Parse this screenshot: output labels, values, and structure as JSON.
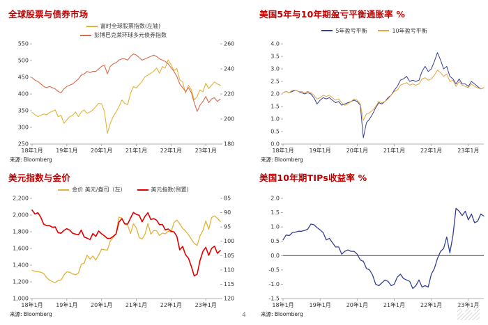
{
  "page": {
    "number": "4"
  },
  "chart_data": [
    {
      "id": "global-equity-bond",
      "type": "line",
      "title": "全球股票与债券市场",
      "source": "来源: Bloomberg",
      "legend_stacked": true,
      "x_ticks": [
        [
          0,
          "18年1月"
        ],
        [
          12,
          "19年1月"
        ],
        [
          24,
          "20年1月"
        ],
        [
          36,
          "21年1月"
        ],
        [
          48,
          "22年1月"
        ],
        [
          60,
          "23年1月"
        ]
      ],
      "left_axis": {
        "range": [
          250,
          550
        ],
        "ticks": [
          [
            550,
            "550"
          ],
          [
            500,
            "500"
          ],
          [
            450,
            "450"
          ],
          [
            400,
            "400"
          ],
          [
            350,
            "350"
          ],
          [
            300,
            "300"
          ],
          [
            250,
            "250"
          ]
        ]
      },
      "right_axis": {
        "range": [
          180,
          260
        ],
        "ticks": [
          [
            260,
            "260"
          ],
          [
            240,
            "240"
          ],
          [
            220,
            "220"
          ],
          [
            200,
            "200"
          ],
          [
            180,
            "180"
          ]
        ]
      },
      "series": [
        {
          "name": "富时全球股票指数(左轴)",
          "color": "#E3B23A",
          "axis": "left",
          "width": 1.1,
          "values": [
            345,
            338,
            332,
            336,
            340,
            338,
            344,
            348,
            352,
            332,
            336,
            312,
            322,
            332,
            336,
            346,
            332,
            346,
            352,
            342,
            346,
            352,
            362,
            372,
            370,
            348,
            282,
            312,
            332,
            346,
            362,
            382,
            372,
            368,
            402,
            422,
            418,
            428,
            438,
            452,
            456,
            462,
            468,
            478,
            462,
            482,
            478,
            502,
            488,
            470,
            476,
            442,
            436,
            402,
            426,
            412,
            382,
            392,
            412,
            406,
            432,
            416,
            426,
            436,
            430,
            426
          ]
        },
        {
          "name": "彭博巴克莱环球多元债券指数",
          "color": "#D96A4A",
          "axis": "right",
          "width": 1.1,
          "values": [
            233,
            231,
            230,
            228,
            226,
            225,
            226,
            225,
            224,
            222,
            221,
            224,
            226,
            227,
            228,
            230,
            232,
            235,
            236,
            238,
            237,
            238,
            238,
            240,
            242,
            243,
            236,
            242,
            244,
            245,
            247,
            248,
            248,
            247,
            250,
            252,
            251,
            249,
            247,
            248,
            249,
            250,
            251,
            250,
            248,
            247,
            246,
            244,
            241,
            238,
            234,
            228,
            225,
            222,
            225,
            221,
            213,
            206,
            211,
            214,
            218,
            213,
            216,
            217,
            214,
            216
          ]
        }
      ]
    },
    {
      "id": "us-breakeven-inflation",
      "type": "line",
      "title": "美国5年与10年期盈亏平衡通胀率 %",
      "source": "来源: Bloomberg",
      "legend_tall": true,
      "x_ticks": [
        [
          0,
          "18年1月"
        ],
        [
          12,
          "19年1月"
        ],
        [
          24,
          "20年1月"
        ],
        [
          36,
          "21年1月"
        ],
        [
          48,
          "22年1月"
        ],
        [
          60,
          "23年1月"
        ]
      ],
      "left_axis": {
        "range": [
          0,
          4
        ],
        "ticks": [
          [
            4,
            "4.0"
          ],
          [
            3.5,
            "3.5"
          ],
          [
            3,
            "3.0"
          ],
          [
            2.5,
            "2.5"
          ],
          [
            2,
            "2.0"
          ],
          [
            1.5,
            "1.5"
          ],
          [
            1,
            "1.0"
          ],
          [
            0.5,
            "0.5"
          ],
          [
            0,
            "0.0"
          ]
        ]
      },
      "series": [
        {
          "name": "5年盈亏平衡",
          "color": "#333F94",
          "axis": "left",
          "width": 1.0,
          "values": [
            2.05,
            2.1,
            2.05,
            2.1,
            2.15,
            2.1,
            2.05,
            2.0,
            2.05,
            2.0,
            1.85,
            1.6,
            1.75,
            1.85,
            1.8,
            1.85,
            1.75,
            1.65,
            1.7,
            1.55,
            1.6,
            1.65,
            1.7,
            1.75,
            1.7,
            1.55,
            0.25,
            0.85,
            1.0,
            1.2,
            1.45,
            1.65,
            1.6,
            1.7,
            1.85,
            1.95,
            2.15,
            2.3,
            2.55,
            2.6,
            2.7,
            2.5,
            2.55,
            2.5,
            2.55,
            2.9,
            3.1,
            2.9,
            3.0,
            3.3,
            3.65,
            3.35,
            3.0,
            3.1,
            2.7,
            2.6,
            2.4,
            2.6,
            2.4,
            2.4,
            2.3,
            2.5,
            2.4,
            2.3,
            2.2,
            2.25
          ]
        },
        {
          "name": "10年盈亏平衡",
          "color": "#E8A33D",
          "axis": "left",
          "width": 1.0,
          "values": [
            2.05,
            2.1,
            2.05,
            2.15,
            2.15,
            2.1,
            2.1,
            2.05,
            2.1,
            2.05,
            1.95,
            1.8,
            1.85,
            1.95,
            1.9,
            1.95,
            1.85,
            1.75,
            1.8,
            1.65,
            1.55,
            1.6,
            1.7,
            1.8,
            1.75,
            1.6,
            0.95,
            1.2,
            1.25,
            1.35,
            1.5,
            1.7,
            1.65,
            1.7,
            1.8,
            1.95,
            2.1,
            2.15,
            2.35,
            2.4,
            2.45,
            2.35,
            2.4,
            2.35,
            2.4,
            2.6,
            2.65,
            2.55,
            2.6,
            2.75,
            2.95,
            2.85,
            2.7,
            2.8,
            2.5,
            2.55,
            2.3,
            2.5,
            2.35,
            2.3,
            2.25,
            2.4,
            2.3,
            2.25,
            2.2,
            2.25
          ]
        }
      ]
    },
    {
      "id": "usd-index-gold",
      "type": "line",
      "title": "美元指数与金价",
      "source": "来源: Bloomberg",
      "x_ticks": [
        [
          0,
          "18年1月"
        ],
        [
          12,
          "19年1月"
        ],
        [
          24,
          "20年1月"
        ],
        [
          36,
          "21年1月"
        ],
        [
          48,
          "22年1月"
        ],
        [
          60,
          "23年1月"
        ]
      ],
      "left_axis": {
        "range": [
          1000,
          2200
        ],
        "ticks": [
          [
            2200,
            "2,200"
          ],
          [
            2000,
            "2,000"
          ],
          [
            1800,
            "1,800"
          ],
          [
            1600,
            "1,600"
          ],
          [
            1400,
            "1,400"
          ],
          [
            1200,
            "1,200"
          ],
          [
            1000,
            "1,000"
          ]
        ]
      },
      "right_axis": {
        "range": [
          85,
          120
        ],
        "inverted": true,
        "ticks": [
          [
            85,
            "85"
          ],
          [
            90,
            "90"
          ],
          [
            95,
            "95"
          ],
          [
            100,
            "100"
          ],
          [
            105,
            "105"
          ],
          [
            110,
            "110"
          ],
          [
            115,
            "115"
          ],
          [
            120,
            "120"
          ]
        ]
      },
      "series": [
        {
          "name": "金价 美元/盎司（左）",
          "color": "#E3B23A",
          "axis": "left",
          "width": 1.3,
          "values": [
            1340,
            1325,
            1322,
            1315,
            1300,
            1252,
            1222,
            1202,
            1192,
            1215,
            1222,
            1282,
            1320,
            1315,
            1295,
            1285,
            1305,
            1410,
            1425,
            1520,
            1472,
            1510,
            1462,
            1520,
            1590,
            1585,
            1580,
            1690,
            1730,
            1780,
            1975,
            1965,
            1890,
            1880,
            1778,
            1895,
            1848,
            1732,
            1712,
            1770,
            1900,
            1772,
            1815,
            1812,
            1756,
            1784,
            1775,
            1806,
            1796,
            1910,
            1940,
            1896,
            1840,
            1808,
            1766,
            1712,
            1662,
            1636,
            1750,
            1815,
            1930,
            1828,
            1970,
            1990,
            1962,
            1920
          ]
        },
        {
          "name": "美元指数(倒置)",
          "color": "#E00000",
          "axis": "right",
          "width": 1.6,
          "values": [
            89.1,
            90.5,
            90.0,
            91.6,
            94.0,
            94.5,
            94.5,
            95.1,
            95.0,
            97.0,
            97.2,
            96.2,
            95.6,
            96.1,
            97.2,
            97.5,
            97.7,
            96.1,
            98.5,
            98.9,
            99.4,
            97.3,
            98.3,
            96.4,
            97.4,
            98.1,
            99.0,
            99.0,
            98.3,
            97.4,
            93.3,
            92.1,
            93.9,
            94.0,
            91.9,
            89.9,
            90.6,
            90.9,
            93.2,
            91.3,
            90.0,
            92.4,
            92.1,
            92.6,
            94.2,
            94.1,
            96.0,
            95.7,
            96.5,
            96.7,
            98.3,
            103.0,
            101.8,
            104.7,
            105.9,
            108.8,
            112.1,
            111.5,
            106.7,
            103.5,
            102.1,
            104.9,
            102.5,
            101.7,
            104.2,
            103.2
          ]
        }
      ]
    },
    {
      "id": "us-10y-tips",
      "type": "line",
      "title": "美国10年期TIPs收益率 %",
      "source": "来源: Bloomberg",
      "baseline": 0,
      "x_ticks": [
        [
          0,
          "18年1月"
        ],
        [
          12,
          "19年1月"
        ],
        [
          24,
          "20年1月"
        ],
        [
          36,
          "21年1月"
        ],
        [
          48,
          "22年1月"
        ],
        [
          60,
          "23年1月"
        ]
      ],
      "left_axis": {
        "range": [
          -1.5,
          2
        ],
        "ticks": [
          [
            2,
            "2.0"
          ],
          [
            1.5,
            "1.5"
          ],
          [
            1,
            "1.0"
          ],
          [
            0.5,
            "0.5"
          ],
          [
            0,
            "0.0"
          ],
          [
            -0.5,
            "-0.5"
          ],
          [
            -1,
            "-1.0"
          ],
          [
            -1.5,
            "-1.5"
          ]
        ]
      },
      "series": [
        {
          "name": "",
          "color": "#333F94",
          "axis": "left",
          "width": 1.3,
          "values": [
            0.55,
            0.72,
            0.7,
            0.8,
            0.82,
            0.85,
            0.85,
            0.88,
            0.92,
            1.1,
            1.08,
            0.98,
            0.9,
            0.8,
            0.55,
            0.6,
            0.45,
            0.3,
            0.3,
            0.05,
            0.15,
            0.2,
            0.15,
            0.15,
            0.05,
            -0.15,
            -0.2,
            -0.45,
            -0.5,
            -0.68,
            -1.0,
            -1.05,
            -0.95,
            -0.85,
            -0.9,
            -1.05,
            -1.0,
            -0.75,
            -0.65,
            -0.8,
            -0.85,
            -0.9,
            -1.15,
            -1.05,
            -0.85,
            -1.1,
            -1.05,
            -1.1,
            -0.65,
            -0.45,
            -0.1,
            0.15,
            0.25,
            0.65,
            0.1,
            0.7,
            1.65,
            1.55,
            1.4,
            1.55,
            1.25,
            1.45,
            1.15,
            1.2,
            1.45,
            1.38
          ]
        }
      ]
    }
  ]
}
